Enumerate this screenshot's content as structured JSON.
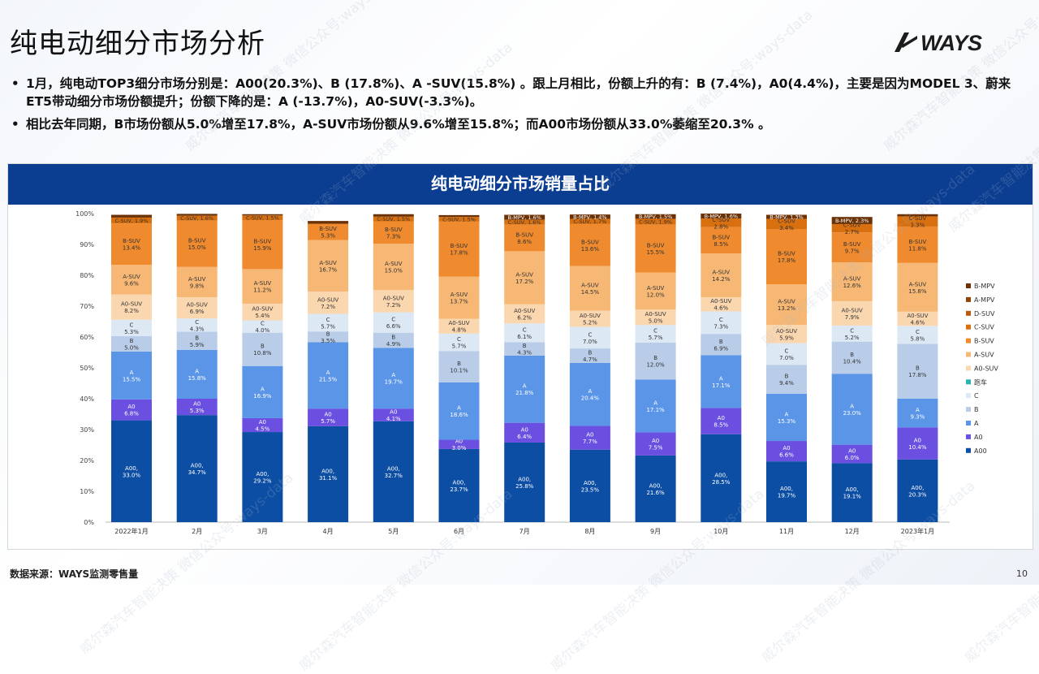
{
  "page": {
    "title": "纯电动细分市场分析",
    "logo_text": "WAYS",
    "bullets": [
      "1月，纯电动TOP3细分市场分别是：A00(20.3%)、B (17.8%)、A -SUV(15.8%) 。跟上月相比，份额上升的有：B (7.4%)，A0(4.4%)，主要是因为MODEL 3、蔚来ET5带动细分市场份额提升；份额下降的是：A (-13.7%)，A0-SUV(-3.3%)。",
      "相比去年同期，B市场份额从5.0%增至17.8%，A-SUV市场份额从9.6%增至15.8%；而A00市场份额从33.0%萎缩至20.3% 。"
    ],
    "footnote": "数据来源：WAYS监测零售量",
    "page_number": "10",
    "watermark_text": "威尔森汽车智能决策 微信公众号:ways-data"
  },
  "chart_data": {
    "type": "bar",
    "stacked": true,
    "percent": true,
    "title": "纯电动细分市场销量占比",
    "categories": [
      "2022年1月",
      "2月",
      "3月",
      "4月",
      "5月",
      "6月",
      "7月",
      "8月",
      "9月",
      "10月",
      "11月",
      "12月",
      "2023年1月"
    ],
    "y_ticks": [
      "0%",
      "10%",
      "20%",
      "30%",
      "40%",
      "50%",
      "60%",
      "70%",
      "80%",
      "90%",
      "100%"
    ],
    "ylim": [
      0,
      100
    ],
    "grid": false,
    "legend_position": "right",
    "series": [
      {
        "name": "A00",
        "color": "#0c4ea3",
        "values": [
          33.0,
          34.7,
          29.2,
          31.1,
          32.7,
          23.7,
          25.8,
          23.5,
          21.6,
          28.5,
          19.7,
          19.1,
          20.3
        ]
      },
      {
        "name": "A0",
        "color": "#6a4fe0",
        "values": [
          6.8,
          5.3,
          4.5,
          5.7,
          4.1,
          3.0,
          6.4,
          7.7,
          7.5,
          8.5,
          6.6,
          6.0,
          10.4
        ]
      },
      {
        "name": "A",
        "color": "#5b95e8",
        "values": [
          15.5,
          15.8,
          16.9,
          21.5,
          19.7,
          18.6,
          21.8,
          20.4,
          17.1,
          17.1,
          15.3,
          23.0,
          9.3
        ]
      },
      {
        "name": "B",
        "color": "#b9cde9",
        "values": [
          5.0,
          5.9,
          10.8,
          3.5,
          4.9,
          10.1,
          4.3,
          4.7,
          12.0,
          6.9,
          9.4,
          10.4,
          17.8
        ]
      },
      {
        "name": "C",
        "color": "#dde8f5",
        "values": [
          5.3,
          4.3,
          4.0,
          5.7,
          6.6,
          5.7,
          6.1,
          7.0,
          5.7,
          7.3,
          7.0,
          5.2,
          5.8
        ]
      },
      {
        "name": "跑车",
        "color": "#2bb3b0",
        "values": [
          0,
          0,
          0,
          0,
          0,
          0,
          0,
          0,
          0,
          0,
          0,
          0,
          0
        ]
      },
      {
        "name": "A0-SUV",
        "color": "#fbd7b0",
        "values": [
          8.2,
          6.9,
          5.4,
          7.2,
          7.2,
          4.8,
          6.2,
          5.2,
          5.0,
          4.6,
          5.9,
          7.9,
          4.6
        ]
      },
      {
        "name": "A-SUV",
        "color": "#f7b875",
        "values": [
          9.6,
          9.8,
          11.2,
          16.7,
          15.0,
          13.7,
          17.2,
          14.5,
          12.0,
          14.2,
          13.2,
          12.6,
          15.8
        ]
      },
      {
        "name": "B-SUV",
        "color": "#ef8a2e",
        "values": [
          13.4,
          15.0,
          15.9,
          5.3,
          7.3,
          17.8,
          8.6,
          13.6,
          15.5,
          8.5,
          17.8,
          9.7,
          11.8
        ]
      },
      {
        "name": "C-SUV",
        "color": "#d9700f",
        "values": [
          1.9,
          1.6,
          1.5,
          0.0,
          1.5,
          1.5,
          1.6,
          1.7,
          1.9,
          2.8,
          3.4,
          2.7,
          3.3
        ]
      },
      {
        "name": "D-SUV",
        "color": "#b85a10",
        "values": [
          0,
          0,
          0,
          0,
          0,
          0,
          0,
          0,
          0,
          0,
          0,
          0,
          0
        ]
      },
      {
        "name": "A-MPV",
        "color": "#8e4309",
        "values": [
          0,
          0,
          0,
          0,
          0,
          0,
          0,
          0,
          0,
          0,
          0,
          0,
          0
        ]
      },
      {
        "name": "B-MPV",
        "color": "#6b3207",
        "values": [
          0.9,
          0.6,
          0.4,
          0.9,
          0.8,
          0.6,
          1.6,
          1.4,
          1.5,
          1.6,
          1.3,
          2.3,
          0.7
        ]
      }
    ]
  }
}
